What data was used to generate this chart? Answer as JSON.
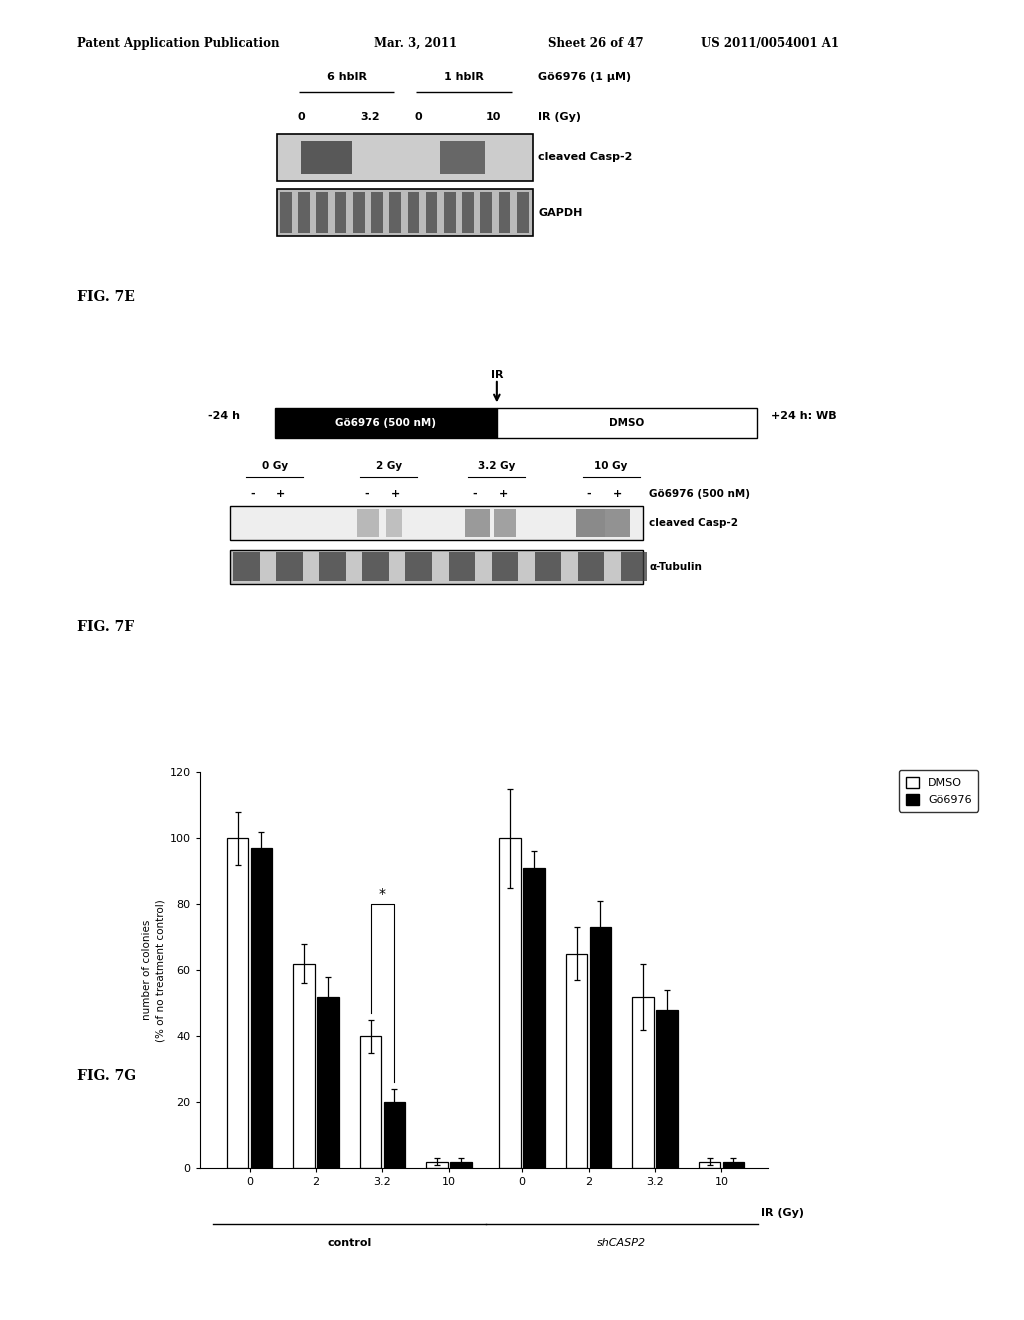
{
  "header_text": "Patent Application Publication",
  "header_date": "Mar. 3, 2011",
  "header_sheet": "Sheet 26 of 47",
  "header_patent": "US 2011/0054001 A1",
  "fig7e_label": "FIG. 7E",
  "fig7e_group1_label": "6 hbIR",
  "fig7e_group2_label": "1 hbIR",
  "fig7e_go_label": "Gö6976 (1 μM)",
  "fig7e_ir_label": "IR (Gy)",
  "fig7e_ir_values": [
    "0",
    "3.2",
    "0",
    "10"
  ],
  "fig7e_band1_label": "cleaved Casp-2",
  "fig7e_band2_label": "GAPDH",
  "fig7f_label": "FIG. 7F",
  "fig7f_timeline_left": "-24 h",
  "fig7f_timeline_ir": "IR",
  "fig7f_timeline_right": "+24 h: WB",
  "fig7f_box1_label": "Gö6976 (500 nM)",
  "fig7f_box2_label": "DMSO",
  "fig7f_dose_labels": [
    "0 Gy",
    "2 Gy",
    "3.2 Gy",
    "10 Gy"
  ],
  "fig7f_pm_labels": [
    "-",
    "+",
    "-",
    "+",
    "-",
    "+",
    "-",
    "+"
  ],
  "fig7f_go500_label": "Gö6976 (500 nM)",
  "fig7f_band1_label": "cleaved Casp-2",
  "fig7f_band2_label": "α-Tubulin",
  "fig7g_label": "FIG. 7G",
  "fig7g_xlabel": "IR (Gy)",
  "fig7g_ylabel": "number of colonies\n(% of no treatment control)",
  "fig7g_ylim": [
    0,
    120
  ],
  "fig7g_yticks": [
    0,
    20,
    40,
    60,
    80,
    100,
    120
  ],
  "fig7g_group_labels": [
    "control",
    "shCASP2"
  ],
  "fig7g_ir_ticks_ctrl": [
    "0",
    "2",
    "3.2",
    "10"
  ],
  "fig7g_ir_ticks_sh": [
    "0",
    "2",
    "3.2",
    "10"
  ],
  "fig7g_ctrl_dmso": [
    100,
    62,
    40,
    2
  ],
  "fig7g_ctrl_go": [
    97,
    52,
    20,
    2
  ],
  "fig7g_ctrl_dmso_err": [
    8,
    6,
    5,
    1
  ],
  "fig7g_ctrl_go_err": [
    5,
    6,
    4,
    1
  ],
  "fig7g_sh_dmso": [
    100,
    65,
    52,
    2
  ],
  "fig7g_sh_go": [
    91,
    73,
    48,
    2
  ],
  "fig7g_sh_dmso_err": [
    15,
    8,
    10,
    1
  ],
  "fig7g_sh_go_err": [
    5,
    8,
    6,
    1
  ],
  "fig7g_legend_dmso": "DMSO",
  "fig7g_legend_go": "Gö6976"
}
